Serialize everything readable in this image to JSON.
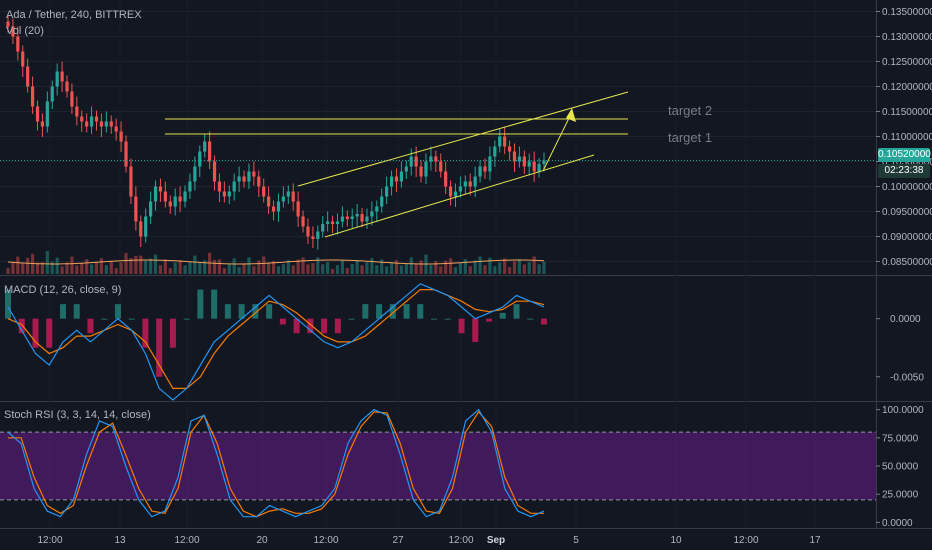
{
  "header": {
    "title": "Ada / Tether, 240, BITTREX",
    "vol_label": "Vol (20)"
  },
  "colors": {
    "background": "#131722",
    "up": "#26a69a",
    "down": "#ef5350",
    "annotation": "#e5e54c",
    "macd": "#2196f3",
    "signal": "#f57c00",
    "stoch_k": "#2196f3",
    "stoch_d": "#f57c00",
    "stoch_band": "#7b1fa2"
  },
  "annotations": {
    "target1": "target 1",
    "target2": "target 2"
  },
  "price_badge": "0.10520000",
  "timer_badge": "02:23:38",
  "time_axis": [
    "12:00",
    "13",
    "12:00",
    "20",
    "12:00",
    "27",
    "12:00",
    "Sep",
    "5",
    "10",
    "12:00",
    "17"
  ],
  "macd": {
    "label": "MACD (12, 26, close, 9)",
    "ticks": [
      "0.0000",
      "-0.0050"
    ]
  },
  "stoch": {
    "label": "Stoch RSI (3, 3, 14, 14, close)",
    "ticks": [
      "100.0000",
      "75.0000",
      "50.0000",
      "25.0000",
      "0.0000"
    ]
  },
  "chart_data": [
    {
      "type": "candlestick",
      "title": "Ada / Tether, 240, BITTREX",
      "y_ticks": [
        "0.13500000",
        "0.13000000",
        "0.12500000",
        "0.12000000",
        "0.11500000",
        "0.11000000",
        "0.10500000",
        "0.10000000",
        "0.09500000",
        "0.09000000",
        "0.08500000"
      ],
      "ylim": [
        0.0825,
        0.1365
      ],
      "x_ticks": [
        "12:00",
        "13",
        "12:00",
        "20",
        "12:00",
        "27",
        "12:00",
        "Sep",
        "5",
        "10",
        "12:00",
        "17"
      ],
      "close": [
        0.132,
        0.13,
        0.127,
        0.124,
        0.12,
        0.116,
        0.113,
        0.112,
        0.117,
        0.12,
        0.123,
        0.121,
        0.119,
        0.116,
        0.114,
        0.113,
        0.112,
        0.114,
        0.113,
        0.112,
        0.113,
        0.112,
        0.111,
        0.109,
        0.104,
        0.098,
        0.093,
        0.09,
        0.094,
        0.097,
        0.1,
        0.099,
        0.097,
        0.096,
        0.098,
        0.097,
        0.099,
        0.101,
        0.104,
        0.107,
        0.109,
        0.105,
        0.101,
        0.099,
        0.098,
        0.099,
        0.101,
        0.102,
        0.101,
        0.103,
        0.102,
        0.1,
        0.098,
        0.096,
        0.095,
        0.097,
        0.098,
        0.099,
        0.097,
        0.094,
        0.092,
        0.09,
        0.0895,
        0.091,
        0.0925,
        0.093,
        0.0925,
        0.093,
        0.094,
        0.0935,
        0.094,
        0.0945,
        0.093,
        0.094,
        0.095,
        0.096,
        0.098,
        0.1,
        0.102,
        0.101,
        0.103,
        0.104,
        0.106,
        0.104,
        0.102,
        0.105,
        0.106,
        0.105,
        0.103,
        0.1,
        0.098,
        0.099,
        0.1,
        0.101,
        0.1,
        0.102,
        0.104,
        0.103,
        0.106,
        0.108,
        0.11,
        0.108,
        0.107,
        0.105,
        0.106,
        0.104,
        0.105,
        0.103,
        0.1045,
        0.1052
      ],
      "last_price": 0.1052,
      "annotations": [
        "target 1",
        "target 2"
      ],
      "target1_level": 0.1105,
      "target2_level": 0.1135
    },
    {
      "type": "line",
      "title": "MACD (12, 26, close, 9)",
      "ylim": [
        -0.007,
        0.0035
      ],
      "y_ticks": [
        0.0,
        -0.005
      ],
      "series": [
        {
          "values": [
            0.001,
            -0.001,
            -0.003,
            -0.004,
            -0.002,
            -0.001,
            -0.002,
            -0.001,
            0.0,
            -0.001,
            -0.003,
            -0.006,
            -0.007,
            -0.006,
            -0.004,
            -0.002,
            -0.001,
            0.0,
            0.001,
            0.002,
            0.001,
            0.0,
            -0.001,
            -0.002,
            -0.0025,
            -0.002,
            -0.001,
            0.0,
            0.001,
            0.002,
            0.003,
            0.0025,
            0.002,
            0.001,
            0.0,
            0.0005,
            0.001,
            0.002,
            0.0015,
            0.001
          ]
        },
        {
          "values": [
            0.0,
            -0.0005,
            -0.002,
            -0.003,
            -0.0025,
            -0.0015,
            -0.0015,
            -0.001,
            -0.0005,
            -0.001,
            -0.002,
            -0.004,
            -0.006,
            -0.006,
            -0.005,
            -0.003,
            -0.0015,
            -0.0005,
            0.0005,
            0.0015,
            0.0012,
            0.0005,
            -0.0005,
            -0.0015,
            -0.002,
            -0.002,
            -0.0015,
            -0.0005,
            0.0005,
            0.0015,
            0.0025,
            0.0025,
            0.002,
            0.0015,
            0.0008,
            0.0006,
            0.0008,
            0.0015,
            0.0015,
            0.0012
          ]
        }
      ]
    },
    {
      "type": "line",
      "title": "Stoch RSI (3, 3, 14, 14, close)",
      "ylim": [
        -5,
        105
      ],
      "y_ticks": [
        100,
        75,
        50,
        25,
        0
      ],
      "band": [
        20,
        80
      ],
      "series": [
        {
          "values": [
            80,
            70,
            30,
            10,
            5,
            20,
            60,
            90,
            85,
            50,
            20,
            5,
            10,
            40,
            90,
            95,
            60,
            20,
            5,
            5,
            15,
            10,
            5,
            10,
            15,
            30,
            70,
            90,
            100,
            95,
            60,
            20,
            5,
            10,
            40,
            90,
            100,
            80,
            30,
            10,
            5,
            10
          ]
        },
        {
          "values": [
            75,
            75,
            40,
            15,
            8,
            15,
            50,
            80,
            88,
            60,
            30,
            10,
            8,
            30,
            80,
            95,
            70,
            30,
            10,
            5,
            10,
            12,
            8,
            8,
            12,
            25,
            60,
            85,
            98,
            97,
            70,
            30,
            10,
            8,
            30,
            80,
            98,
            85,
            40,
            15,
            8,
            8
          ]
        }
      ]
    }
  ]
}
